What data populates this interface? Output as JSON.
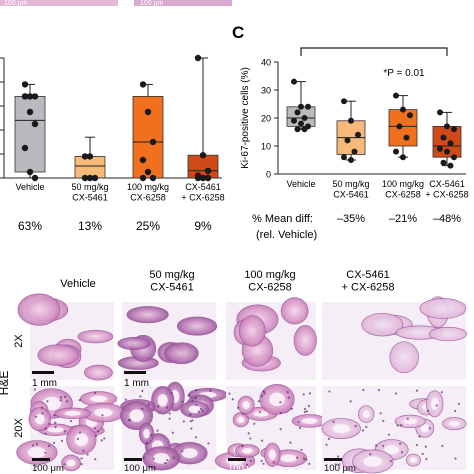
{
  "figure": {
    "panel_c_letter": "C",
    "top_scalebars": [
      "100 μm",
      "100 μm"
    ]
  },
  "chart_data": [
    {
      "type": "box",
      "panel": "left (partial)",
      "categories": [
        "Vehicle",
        "50 mg/kg\nCX-5461",
        "100 mg/kg\nCX-6258",
        "CX-5461\n+ CX-6258"
      ],
      "box_colors": [
        "#b8babd",
        "#f7b97a",
        "#f0701e",
        "#cf4a17"
      ],
      "boxes": [
        {
          "q1": 0.05,
          "median": 0.48,
          "q3": 0.68,
          "min": 0.0,
          "max": 0.78
        },
        {
          "q1": 0.0,
          "median": 0.1,
          "q3": 0.18,
          "min": 0.0,
          "max": 0.34
        },
        {
          "q1": 0.0,
          "median": 0.3,
          "q3": 0.68,
          "min": 0.0,
          "max": 0.78
        },
        {
          "q1": 0.0,
          "median": 0.06,
          "q3": 0.19,
          "min": 0.0,
          "max": 1.0
        }
      ],
      "points": [
        [
          0.68,
          0.68,
          0.68,
          0.68,
          0.55,
          0.45,
          0.25,
          0.05,
          0.0,
          0.78
        ],
        [
          0.18,
          0.18,
          0.0,
          0.0,
          0.0
        ],
        [
          0.78,
          0.55,
          0.3,
          0.15,
          0.05,
          0.0,
          0.0
        ],
        [
          1.0,
          0.19,
          0.06,
          0.02,
          0.0,
          0.0,
          0.0,
          0.0,
          0.0
        ]
      ],
      "percent_row": [
        "63%",
        "13%",
        "25%",
        "9%"
      ]
    },
    {
      "type": "box",
      "panel": "C",
      "ylabel": "Ki-67-positive cells (%)",
      "ylim": [
        0,
        40
      ],
      "yticks": [
        0,
        10,
        20,
        30,
        40
      ],
      "categories": [
        "Vehicle",
        "50 mg/kg\nCX-5461",
        "100 mg/kg\nCX-6258",
        "CX-5461\n+ CX-6258"
      ],
      "box_colors": [
        "#b8babd",
        "#f7b97a",
        "#f0701e",
        "#cf4a17"
      ],
      "boxes": [
        {
          "min": 16,
          "q1": 17,
          "median": 20,
          "q3": 24,
          "max": 33
        },
        {
          "min": 5,
          "q1": 7,
          "median": 13,
          "q3": 19,
          "max": 26
        },
        {
          "min": 6,
          "q1": 10,
          "median": 17,
          "q3": 23,
          "max": 28
        },
        {
          "min": 3,
          "q1": 6,
          "median": 10,
          "q3": 17,
          "max": 22
        }
      ],
      "points": [
        [
          33,
          24,
          24,
          22,
          20,
          19,
          18,
          17,
          16,
          16
        ],
        [
          26,
          19,
          14,
          12,
          8,
          6,
          5
        ],
        [
          28,
          23,
          21,
          17,
          13,
          8,
          6
        ],
        [
          22,
          17,
          16,
          13,
          11,
          9,
          8,
          6,
          4,
          3
        ]
      ],
      "significance": {
        "label": "*P = 0.01",
        "from": 0,
        "to": 3
      },
      "mean_diff_label": "% Mean diff:",
      "mean_diff_sublabel": "(rel. Vehicle)",
      "mean_diff_values": [
        "–35%",
        "–21%",
        "–48%"
      ]
    }
  ],
  "histology": {
    "columns": [
      "Vehicle",
      "50 mg/kg\nCX-5461",
      "100 mg/kg\nCX-6258",
      "CX-5461\n+ CX-6258"
    ],
    "rows": [
      "2X",
      "20X"
    ],
    "stain_label": "H&E",
    "scalebars_row1": [
      "1 mm",
      "1 mm"
    ],
    "scalebars_row2": [
      "100 μm",
      "100 μm",
      "100 μm",
      "100 μm"
    ]
  }
}
